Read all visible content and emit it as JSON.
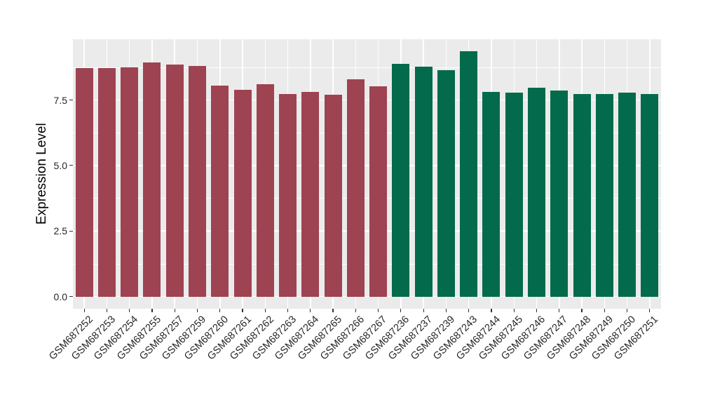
{
  "chart_data": {
    "type": "bar",
    "title": "",
    "xlabel": "",
    "ylabel": "Expression Level",
    "ylim": [
      0,
      9.8
    ],
    "yticks": {
      "values": [
        0,
        2.5,
        5,
        7.5
      ],
      "labels": [
        "0.0",
        "2.5",
        "5.0",
        "7.5"
      ]
    },
    "grid": "major and minor white gridlines on gray panel",
    "legend": "none",
    "colors": {
      "panel_bg": "#EBEBEB",
      "grid": "#FFFFFF",
      "tick": "#333333",
      "axis_text": "#262626"
    },
    "groups": [
      {
        "name": "left-group",
        "color": "#9E4351"
      },
      {
        "name": "right-group",
        "color": "#046A4C"
      }
    ],
    "bars": [
      {
        "label": "GSM687252",
        "value": 8.72,
        "group": 0
      },
      {
        "label": "GSM687253",
        "value": 8.72,
        "group": 0
      },
      {
        "label": "GSM687254",
        "value": 8.74,
        "group": 0
      },
      {
        "label": "GSM687255",
        "value": 8.93,
        "group": 0
      },
      {
        "label": "GSM687257",
        "value": 8.85,
        "group": 0
      },
      {
        "label": "GSM687259",
        "value": 8.81,
        "group": 0
      },
      {
        "label": "GSM687260",
        "value": 8.06,
        "group": 0
      },
      {
        "label": "GSM687261",
        "value": 7.9,
        "group": 0
      },
      {
        "label": "GSM687262",
        "value": 8.11,
        "group": 0
      },
      {
        "label": "GSM687263",
        "value": 7.74,
        "group": 0
      },
      {
        "label": "GSM687264",
        "value": 7.82,
        "group": 0
      },
      {
        "label": "GSM687265",
        "value": 7.71,
        "group": 0
      },
      {
        "label": "GSM687266",
        "value": 8.3,
        "group": 0
      },
      {
        "label": "GSM687267",
        "value": 8.03,
        "group": 0
      },
      {
        "label": "GSM687236",
        "value": 8.89,
        "group": 1
      },
      {
        "label": "GSM687237",
        "value": 8.76,
        "group": 1
      },
      {
        "label": "GSM687239",
        "value": 8.64,
        "group": 1
      },
      {
        "label": "GSM687243",
        "value": 9.35,
        "group": 1
      },
      {
        "label": "GSM687244",
        "value": 7.82,
        "group": 1
      },
      {
        "label": "GSM687245",
        "value": 7.77,
        "group": 1
      },
      {
        "label": "GSM687246",
        "value": 7.98,
        "group": 1
      },
      {
        "label": "GSM687247",
        "value": 7.87,
        "group": 1
      },
      {
        "label": "GSM687248",
        "value": 7.74,
        "group": 1
      },
      {
        "label": "GSM687249",
        "value": 7.74,
        "group": 1
      },
      {
        "label": "GSM687250",
        "value": 7.79,
        "group": 1
      },
      {
        "label": "GSM687251",
        "value": 7.74,
        "group": 1
      }
    ]
  }
}
